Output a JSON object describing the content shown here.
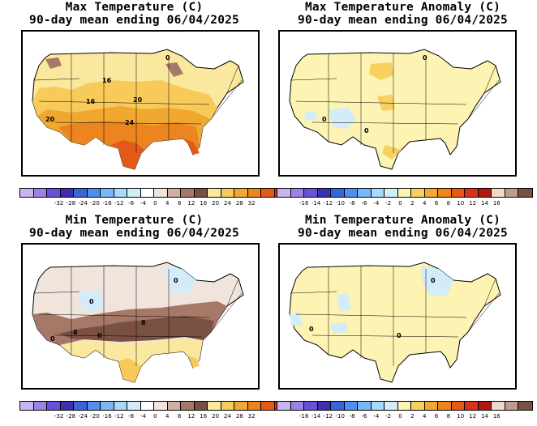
{
  "panels": [
    {
      "id": "max-temp",
      "title_line1": "Max Temperature (C)",
      "title_line2": "90-day mean ending 06/04/2025",
      "colorbar": {
        "colors": [
          "#c8b4f0",
          "#9c82e6",
          "#6a4fd8",
          "#3c2fb0",
          "#3a64dc",
          "#4f8ff0",
          "#78b8f8",
          "#a8d8fa",
          "#d2ecfa",
          "#ffffff",
          "#f0e4dc",
          "#d0b0a0",
          "#a67868",
          "#7a5042",
          "#fae89e",
          "#f8ca5a",
          "#f0a830",
          "#ec8420",
          "#e45818",
          "#d8301a",
          "#b01810"
        ],
        "tick_labels": [
          "-32",
          "-28",
          "-24",
          "-20",
          "-16",
          "-12",
          "-8",
          "-4",
          "0",
          "4",
          "8",
          "12",
          "16",
          "20",
          "24",
          "28",
          "32"
        ]
      },
      "contour_labels": [
        "16",
        "16",
        "20",
        "20",
        "24",
        "0"
      ]
    },
    {
      "id": "max-anom",
      "title_line1": "Max Temperature Anomaly (C)",
      "title_line2": "90-day mean ending 06/04/2025",
      "colorbar": {
        "colors": [
          "#c8b4f0",
          "#9c82e6",
          "#6a4fd8",
          "#3c2fb0",
          "#3a64dc",
          "#4f8ff0",
          "#78b8f8",
          "#a8d8fa",
          "#d2ecfa",
          "#fdf3b2",
          "#f8d060",
          "#f0a830",
          "#ec8420",
          "#e45818",
          "#d8301a",
          "#b01810",
          "#f0d8cc",
          "#c09a8a",
          "#7a5042"
        ],
        "tick_labels": [
          "-16",
          "-14",
          "-12",
          "-10",
          "-8",
          "-6",
          "-4",
          "-2",
          "0",
          "2",
          "4",
          "6",
          "8",
          "10",
          "12",
          "14",
          "16"
        ]
      },
      "contour_labels": [
        "0",
        "0",
        "0"
      ]
    },
    {
      "id": "min-temp",
      "title_line1": "Min Temperature (C)",
      "title_line2": "90-day mean ending 06/04/2025",
      "colorbar": {
        "colors": [
          "#c8b4f0",
          "#9c82e6",
          "#6a4fd8",
          "#3c2fb0",
          "#3a64dc",
          "#4f8ff0",
          "#78b8f8",
          "#a8d8fa",
          "#d2ecfa",
          "#ffffff",
          "#f0e4dc",
          "#d0b0a0",
          "#a67868",
          "#7a5042",
          "#fae89e",
          "#f8ca5a",
          "#f0a830",
          "#ec8420",
          "#e45818",
          "#d8301a",
          "#b01810"
        ],
        "tick_labels": [
          "-32",
          "-28",
          "-24",
          "-20",
          "-16",
          "-12",
          "-8",
          "-4",
          "0",
          "4",
          "8",
          "12",
          "16",
          "20",
          "24",
          "28",
          "32"
        ]
      },
      "contour_labels": [
        "0",
        "8",
        "0",
        "8",
        "0",
        "0"
      ]
    },
    {
      "id": "min-anom",
      "title_line1": "Min Temperature Anomaly (C)",
      "title_line2": "90-day mean ending 06/04/2025",
      "colorbar": {
        "colors": [
          "#c8b4f0",
          "#9c82e6",
          "#6a4fd8",
          "#3c2fb0",
          "#3a64dc",
          "#4f8ff0",
          "#78b8f8",
          "#a8d8fa",
          "#d2ecfa",
          "#fdf3b2",
          "#f8d060",
          "#f0a830",
          "#ec8420",
          "#e45818",
          "#d8301a",
          "#b01810",
          "#f0d8cc",
          "#c09a8a",
          "#7a5042"
        ],
        "tick_labels": [
          "-16",
          "-14",
          "-12",
          "-10",
          "-8",
          "-6",
          "-4",
          "-2",
          "0",
          "2",
          "4",
          "6",
          "8",
          "10",
          "12",
          "14",
          "16"
        ]
      },
      "contour_labels": [
        "0",
        "0",
        "0"
      ]
    }
  ]
}
